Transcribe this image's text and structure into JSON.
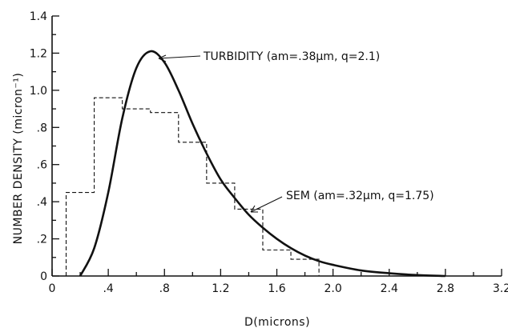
{
  "chart_data": {
    "type": "line",
    "title": "",
    "xlabel": "D(microns)",
    "ylabel": "NUMBER DENSITY (micron⁻¹)",
    "xlim": [
      0,
      3.2
    ],
    "ylim": [
      0,
      1.4
    ],
    "x_ticks": [
      0,
      0.4,
      0.8,
      1.2,
      1.6,
      2.0,
      2.4,
      2.8,
      3.2
    ],
    "x_tick_labels": [
      "0",
      ".4",
      ".8",
      "1.2",
      "1.6",
      "2.0",
      "2.4",
      "2.8",
      "3.2"
    ],
    "y_ticks": [
      0,
      0.2,
      0.4,
      0.6,
      0.8,
      1.0,
      1.2,
      1.4
    ],
    "y_tick_labels": [
      "0",
      ".2",
      ".4",
      ".6",
      ".8",
      "1.0",
      "1.2",
      "1.4"
    ],
    "grid": false,
    "series": [
      {
        "name": "TURBIDITY",
        "style": "solid",
        "annotation": "TURBIDITY (am=.38μm, q=2.1)",
        "x": [
          0.2,
          0.3,
          0.4,
          0.5,
          0.6,
          0.7,
          0.8,
          0.9,
          1.0,
          1.1,
          1.2,
          1.3,
          1.4,
          1.5,
          1.6,
          1.7,
          1.8,
          1.9,
          2.0,
          2.2,
          2.4,
          2.6,
          2.8
        ],
        "y": [
          0.0,
          0.15,
          0.45,
          0.85,
          1.12,
          1.21,
          1.15,
          1.0,
          0.82,
          0.66,
          0.52,
          0.42,
          0.33,
          0.26,
          0.2,
          0.15,
          0.11,
          0.08,
          0.06,
          0.03,
          0.015,
          0.005,
          0.0
        ]
      },
      {
        "name": "SEM",
        "style": "dashed-step",
        "annotation": "SEM (am=.32μm, q=1.75)",
        "bin_edges": [
          0.1,
          0.3,
          0.5,
          0.7,
          0.9,
          1.1,
          1.3,
          1.5,
          1.7,
          1.9
        ],
        "values": [
          0.45,
          0.96,
          0.9,
          0.88,
          0.72,
          0.5,
          0.36,
          0.14,
          0.09
        ]
      }
    ]
  }
}
